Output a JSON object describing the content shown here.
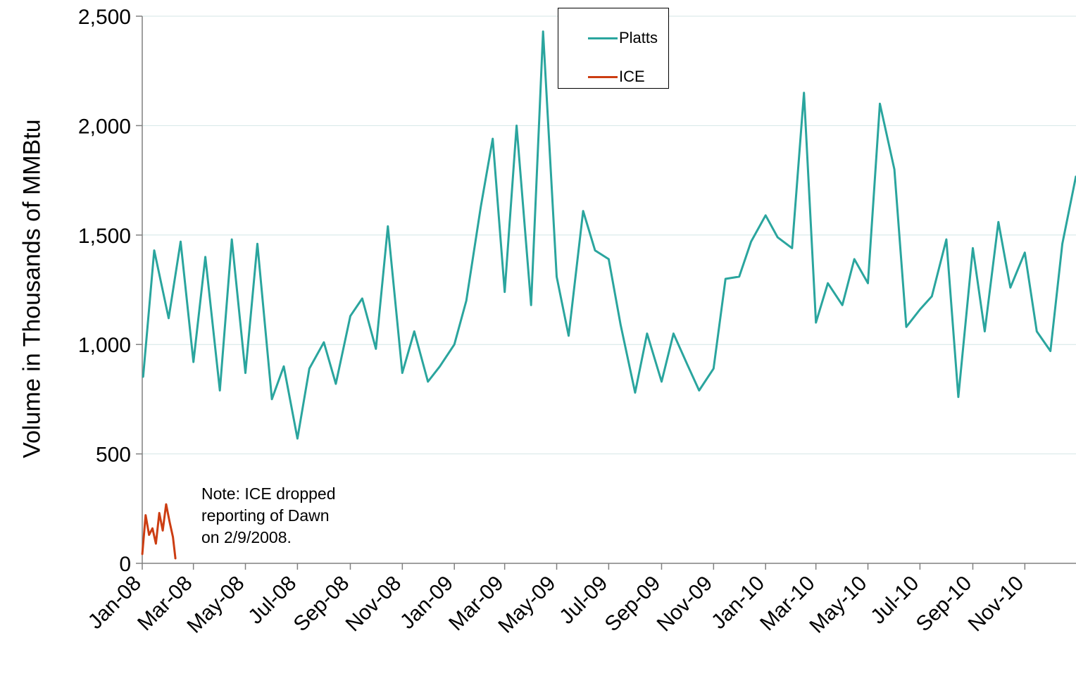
{
  "chart_data": {
    "type": "line",
    "title": "",
    "xlabel": "",
    "ylabel": "Volume in Thousands of MMBtu",
    "ylim": [
      0,
      2500
    ],
    "yticks": [
      0,
      500,
      1000,
      1500,
      2000,
      2500
    ],
    "ytick_labels": [
      "0",
      "500",
      "1,000",
      "1,500",
      "2,000",
      "2,500"
    ],
    "x_range": [
      "2008-01-01",
      "2010-12-31"
    ],
    "xtick_labels": [
      "Jan-08",
      "Mar-08",
      "May-08",
      "Jul-08",
      "Sep-08",
      "Nov-08",
      "Jan-09",
      "Mar-09",
      "May-09",
      "Jul-09",
      "Sep-09",
      "Nov-09",
      "Jan-10",
      "Mar-10",
      "May-10",
      "Jul-10",
      "Sep-10",
      "Nov-10"
    ],
    "grid": "horizontal",
    "legend_position": "top-center",
    "series": [
      {
        "name": "Platts",
        "color": "#2aa59e",
        "x": [
          "2008-01-02",
          "2008-01-15",
          "2008-02-01",
          "2008-02-15",
          "2008-03-01",
          "2008-03-15",
          "2008-04-01",
          "2008-04-15",
          "2008-05-01",
          "2008-05-15",
          "2008-06-01",
          "2008-06-15",
          "2008-07-01",
          "2008-07-15",
          "2008-08-01",
          "2008-08-15",
          "2008-09-01",
          "2008-09-15",
          "2008-10-01",
          "2008-10-15",
          "2008-11-01",
          "2008-11-15",
          "2008-12-01",
          "2008-12-15",
          "2009-01-01",
          "2009-01-15",
          "2009-02-01",
          "2009-02-15",
          "2009-03-01",
          "2009-03-15",
          "2009-04-01",
          "2009-04-15",
          "2009-05-01",
          "2009-05-15",
          "2009-06-01",
          "2009-06-15",
          "2009-07-01",
          "2009-07-15",
          "2009-08-01",
          "2009-08-15",
          "2009-09-01",
          "2009-09-15",
          "2009-10-01",
          "2009-10-15",
          "2009-11-01",
          "2009-11-15",
          "2009-12-01",
          "2009-12-15",
          "2010-01-01",
          "2010-01-15",
          "2010-02-01",
          "2010-02-15",
          "2010-03-01",
          "2010-03-15",
          "2010-04-01",
          "2010-04-15",
          "2010-05-01",
          "2010-05-15",
          "2010-06-01",
          "2010-06-15",
          "2010-07-01",
          "2010-07-15",
          "2010-08-01",
          "2010-08-15",
          "2010-09-01",
          "2010-09-15",
          "2010-10-01",
          "2010-10-15",
          "2010-11-01",
          "2010-11-15",
          "2010-12-01",
          "2010-12-15",
          "2010-12-31"
        ],
        "values": [
          850,
          1430,
          1120,
          1470,
          920,
          1400,
          790,
          1480,
          870,
          1460,
          750,
          900,
          570,
          890,
          1010,
          820,
          1130,
          1210,
          980,
          1540,
          870,
          1060,
          830,
          900,
          1000,
          1200,
          1630,
          1940,
          1240,
          2000,
          1180,
          2430,
          1310,
          1040,
          1610,
          1430,
          1390,
          1090,
          780,
          1050,
          830,
          1050,
          910,
          790,
          890,
          1300,
          1310,
          1470,
          1590,
          1490,
          1440,
          2150,
          1100,
          1280,
          1180,
          1390,
          1280,
          2100,
          1800,
          1080,
          1160,
          1220,
          1480,
          760,
          1440,
          1060,
          1560,
          1260,
          1420,
          1060,
          970,
          1460,
          1770
        ]
      },
      {
        "name": "ICE",
        "color": "#cc3d12",
        "x": [
          "2008-01-01",
          "2008-01-05",
          "2008-01-09",
          "2008-01-13",
          "2008-01-17",
          "2008-01-21",
          "2008-01-25",
          "2008-01-29",
          "2008-02-02",
          "2008-02-06",
          "2008-02-09"
        ],
        "values": [
          40,
          220,
          130,
          160,
          90,
          230,
          150,
          270,
          190,
          120,
          20
        ]
      }
    ],
    "annotations": [
      {
        "lines": [
          "Note: ICE dropped",
          "reporting of Dawn",
          "on 2/9/2008."
        ]
      }
    ]
  }
}
